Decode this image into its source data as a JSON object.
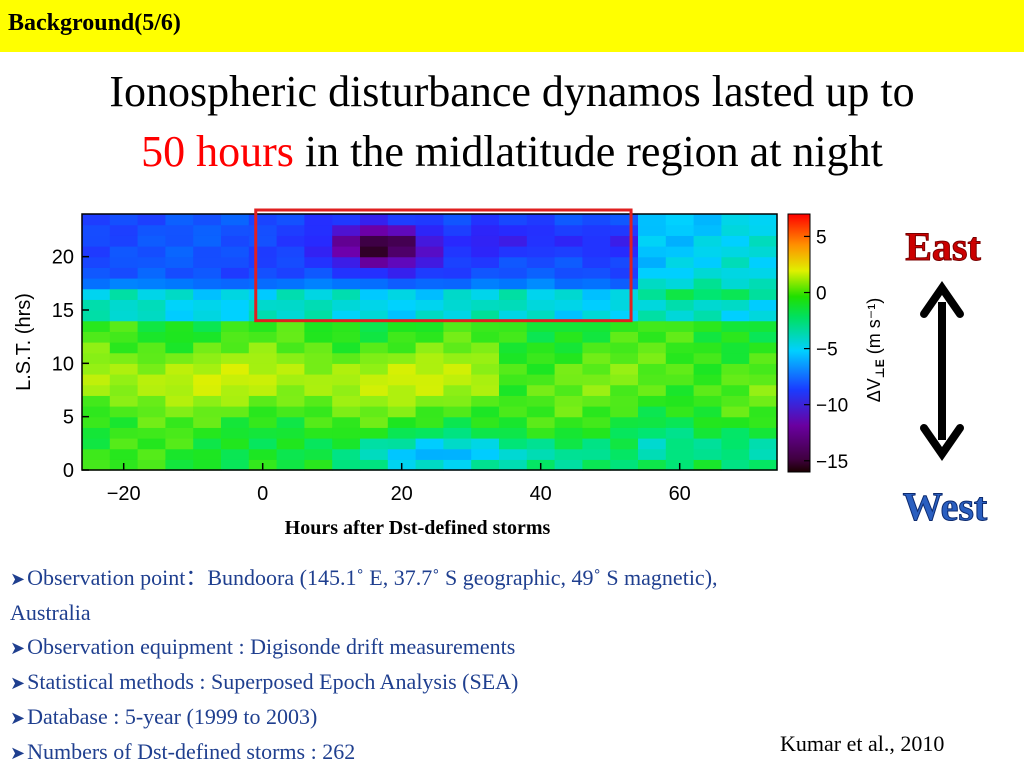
{
  "header": {
    "title": "Background(5/6)"
  },
  "headline": {
    "line1": "Ionospheric disturbance dynamos lasted up to",
    "line2_highlight": "50 hours",
    "line2_rest": " in the midlatitude region at night"
  },
  "chart_data": {
    "type": "heatmap",
    "title": "",
    "xlabel": "Hours after Dst-defined storms",
    "ylabel": "L.S.T. (hrs)",
    "xlim": [
      -26,
      74
    ],
    "ylim": [
      0,
      24
    ],
    "x_ticks": [
      "−20",
      "0",
      "20",
      "40",
      "60"
    ],
    "y_ticks": [
      "0",
      "5",
      "10",
      "15",
      "20"
    ],
    "colorbar": {
      "label": "ΔV",
      "label_sub": "⊥E",
      "label_units": " (m s⁻¹)",
      "range": [
        -16,
        7
      ],
      "ticks": [
        "5",
        "0",
        "−5",
        "−10",
        "−15"
      ]
    },
    "grid": false,
    "highlight_box": {
      "x": [
        -1,
        53
      ],
      "y": [
        14,
        24
      ],
      "color": "#e02020"
    },
    "description_values": "Approximate ΔV field: strong negative (westward) values (~−15 m/s) near x=12..25 h at 19..23 LST; moderate negatives (~−8) across 16..24 LST up to ~53 h; slightly positive (~+1..+2) near 5..12 LST for x=−25..35 h; near zero elsewhere."
  },
  "directions": {
    "up": "East",
    "down": "West"
  },
  "bullets": [
    "Observation point：Bundoora (145.1˚ E, 37.7˚ S geographic, 49˚ S magnetic),",
    "Australia",
    "Observation equipment :  Digisonde drift measurements",
    "Statistical methods : Superposed Epoch Analysis (SEA)",
    "Database : 5-year (1999 to 2003)",
    "Numbers of Dst-defined storms :  262"
  ],
  "citation": "Kumar et al., 2010",
  "colors": {
    "header_bg": "#ffff00",
    "highlight": "#ff0000",
    "bullet_text": "#1f3f8f",
    "direction_text": "#cc0000"
  }
}
